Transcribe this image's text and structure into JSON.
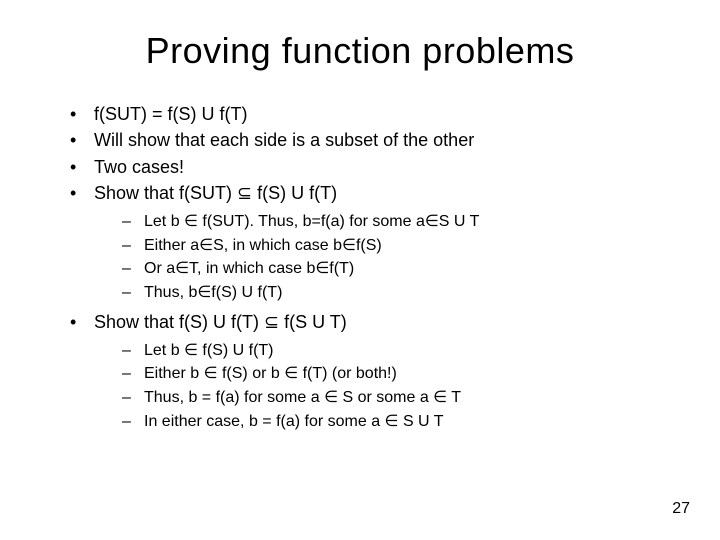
{
  "title": "Proving function problems",
  "page_number": "27",
  "colors": {
    "background": "#ffffff",
    "text": "#000000"
  },
  "typography": {
    "title_fontsize": 36,
    "body_fontsize": 18,
    "sub_fontsize": 16,
    "font_family": "Arial"
  },
  "bullets": [
    {
      "text": "f(SUT) = f(S) U f(T)"
    },
    {
      "text": "Will show that each side is a subset of the other"
    },
    {
      "text": "Two cases!"
    },
    {
      "text": "Show that f(SUT) ⊆ f(S) U f(T)",
      "sub": [
        "Let b ∈ f(SUT).  Thus, b=f(a) for some a∈S U T",
        "Either a∈S, in which case b∈f(S)",
        "Or a∈T, in which case b∈f(T)",
        "Thus, b∈f(S) U f(T)"
      ]
    },
    {
      "text": "Show that f(S) U f(T) ⊆ f(S U T)",
      "sub": [
        "Let b ∈ f(S) U f(T)",
        "Either b ∈ f(S) or b ∈ f(T) (or both!)",
        "Thus, b = f(a) for some a ∈ S or some a ∈ T",
        "In either case, b = f(a) for some a ∈ S U T"
      ]
    }
  ]
}
